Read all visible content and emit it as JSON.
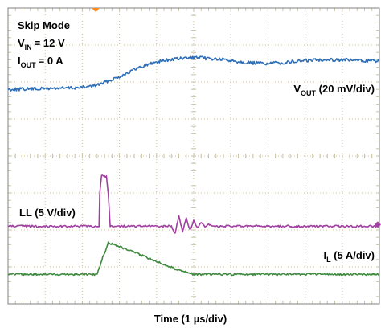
{
  "chart_data": {
    "type": "line",
    "title": "Skip Mode",
    "conditions": [
      {
        "symbol": "V",
        "subscript": "IN",
        "value": "= 12 V"
      },
      {
        "symbol": "I",
        "subscript": "OUT",
        "value": "= 0 A"
      }
    ],
    "xlabel": "Time (1 µs/div)",
    "x_divisions": 10,
    "y_divisions": 8,
    "grid": true,
    "series": [
      {
        "name": "VOUT",
        "label_symbol": "V",
        "label_subscript": "OUT",
        "label_rest": " (20 mV/div)",
        "color": "#2e6fb7",
        "x": [
          0,
          1,
          2,
          2.3,
          2.5,
          3,
          3.5,
          4,
          4.5,
          5,
          5.5,
          6,
          6.5,
          7,
          7.5,
          8,
          8.5,
          9,
          9.5,
          10
        ],
        "y": [
          1.8,
          1.82,
          1.85,
          1.9,
          1.95,
          2.15,
          2.38,
          2.55,
          2.62,
          2.66,
          2.63,
          2.58,
          2.52,
          2.5,
          2.53,
          2.58,
          2.61,
          2.6,
          2.58,
          2.57
        ]
      },
      {
        "name": "LL",
        "label_rest": "LL (5 V/div)",
        "color": "#a040a0",
        "x": [
          0,
          2.45,
          2.47,
          2.52,
          2.65,
          2.7,
          2.75,
          4.4,
          4.5,
          4.6,
          4.7,
          4.8,
          4.9,
          5.0,
          5.1,
          5.2,
          5.3,
          5.4,
          5.5,
          6,
          10
        ],
        "y": [
          -1.9,
          -1.9,
          -1.0,
          -0.55,
          -0.55,
          -1.0,
          -1.9,
          -1.9,
          -2.1,
          -1.6,
          -2.05,
          -1.7,
          -2.0,
          -1.75,
          -1.95,
          -1.8,
          -1.93,
          -1.86,
          -1.9,
          -1.9,
          -1.9
        ]
      },
      {
        "name": "IL",
        "label_symbol": "I",
        "label_subscript": "L",
        "label_rest": " (5 A/div)",
        "color": "#3e8a3e",
        "x": [
          0,
          2.4,
          2.55,
          2.7,
          3.0,
          3.5,
          4.0,
          4.5,
          5.0,
          5.5,
          6,
          10
        ],
        "y": [
          -3.2,
          -3.2,
          -2.75,
          -2.35,
          -2.45,
          -2.65,
          -2.85,
          -3.05,
          -3.2,
          -3.2,
          -3.2,
          -3.2
        ]
      }
    ]
  }
}
